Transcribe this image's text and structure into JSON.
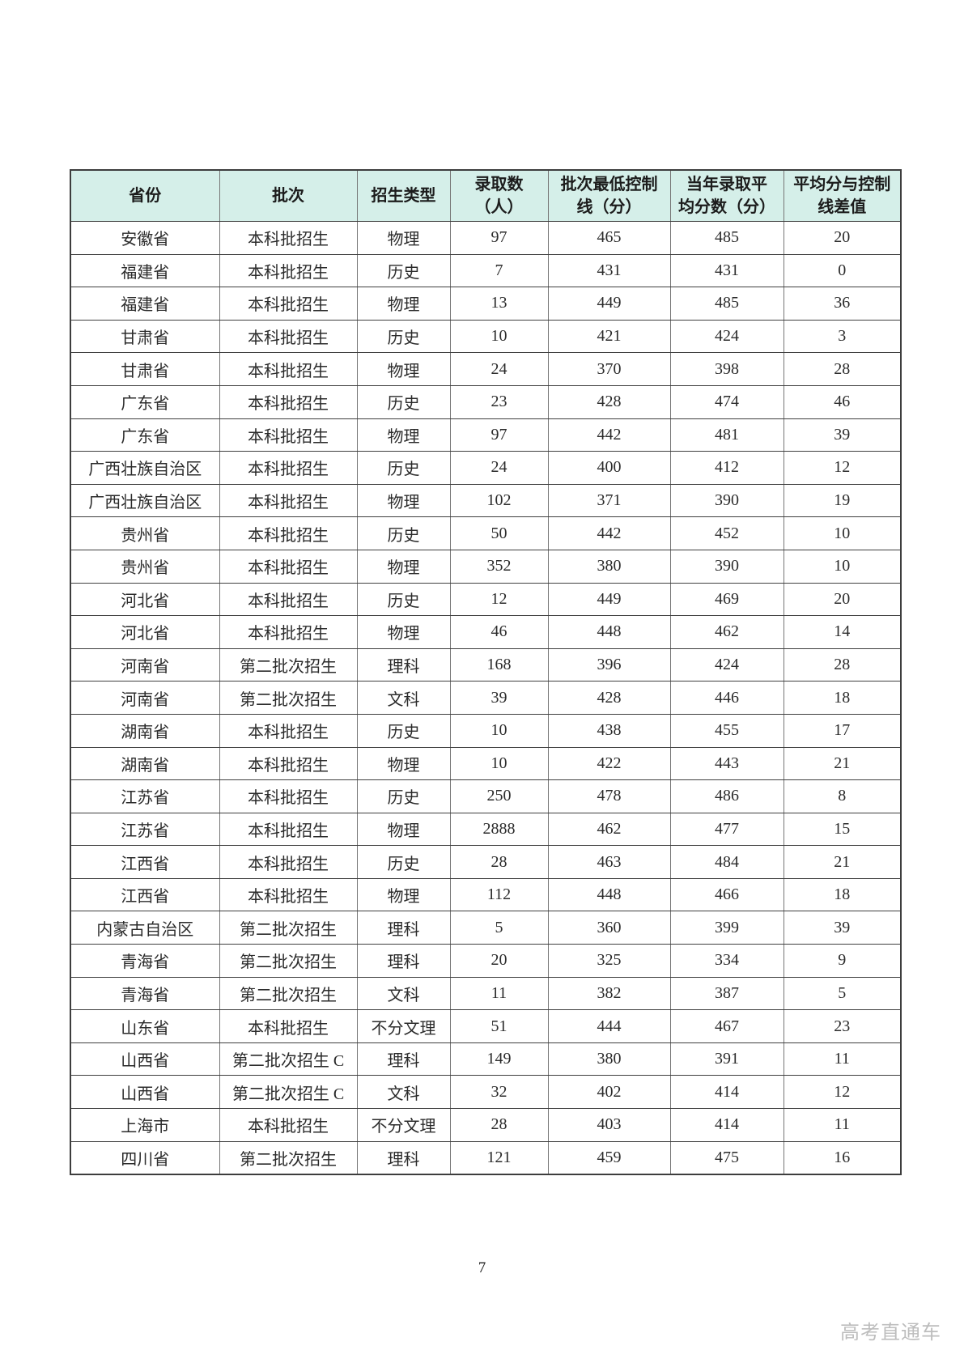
{
  "page": {
    "number": "7",
    "watermark": "高考直通车"
  },
  "colors": {
    "header_bg": "#d5efe9",
    "border_horizontal": "#3f3f3f",
    "border_vertical": "#767676",
    "watermark_text": "#bdbdbd"
  },
  "table": {
    "headers": [
      {
        "line1": "省份",
        "line2": ""
      },
      {
        "line1": "批次",
        "line2": ""
      },
      {
        "line1": "招生类型",
        "line2": ""
      },
      {
        "line1": "录取数",
        "line2": "（人）"
      },
      {
        "line1": "批次最低控制",
        "line2": "线（分）"
      },
      {
        "line1": "当年录取平",
        "line2": "均分数（分）"
      },
      {
        "line1": "平均分与控制",
        "line2": "线差值"
      }
    ],
    "rows": [
      [
        "安徽省",
        "本科批招生",
        "物理",
        "97",
        "465",
        "485",
        "20"
      ],
      [
        "福建省",
        "本科批招生",
        "历史",
        "7",
        "431",
        "431",
        "0"
      ],
      [
        "福建省",
        "本科批招生",
        "物理",
        "13",
        "449",
        "485",
        "36"
      ],
      [
        "甘肃省",
        "本科批招生",
        "历史",
        "10",
        "421",
        "424",
        "3"
      ],
      [
        "甘肃省",
        "本科批招生",
        "物理",
        "24",
        "370",
        "398",
        "28"
      ],
      [
        "广东省",
        "本科批招生",
        "历史",
        "23",
        "428",
        "474",
        "46"
      ],
      [
        "广东省",
        "本科批招生",
        "物理",
        "97",
        "442",
        "481",
        "39"
      ],
      [
        "广西壮族自治区",
        "本科批招生",
        "历史",
        "24",
        "400",
        "412",
        "12"
      ],
      [
        "广西壮族自治区",
        "本科批招生",
        "物理",
        "102",
        "371",
        "390",
        "19"
      ],
      [
        "贵州省",
        "本科批招生",
        "历史",
        "50",
        "442",
        "452",
        "10"
      ],
      [
        "贵州省",
        "本科批招生",
        "物理",
        "352",
        "380",
        "390",
        "10"
      ],
      [
        "河北省",
        "本科批招生",
        "历史",
        "12",
        "449",
        "469",
        "20"
      ],
      [
        "河北省",
        "本科批招生",
        "物理",
        "46",
        "448",
        "462",
        "14"
      ],
      [
        "河南省",
        "第二批次招生",
        "理科",
        "168",
        "396",
        "424",
        "28"
      ],
      [
        "河南省",
        "第二批次招生",
        "文科",
        "39",
        "428",
        "446",
        "18"
      ],
      [
        "湖南省",
        "本科批招生",
        "历史",
        "10",
        "438",
        "455",
        "17"
      ],
      [
        "湖南省",
        "本科批招生",
        "物理",
        "10",
        "422",
        "443",
        "21"
      ],
      [
        "江苏省",
        "本科批招生",
        "历史",
        "250",
        "478",
        "486",
        "8"
      ],
      [
        "江苏省",
        "本科批招生",
        "物理",
        "2888",
        "462",
        "477",
        "15"
      ],
      [
        "江西省",
        "本科批招生",
        "历史",
        "28",
        "463",
        "484",
        "21"
      ],
      [
        "江西省",
        "本科批招生",
        "物理",
        "112",
        "448",
        "466",
        "18"
      ],
      [
        "内蒙古自治区",
        "第二批次招生",
        "理科",
        "5",
        "360",
        "399",
        "39"
      ],
      [
        "青海省",
        "第二批次招生",
        "理科",
        "20",
        "325",
        "334",
        "9"
      ],
      [
        "青海省",
        "第二批次招生",
        "文科",
        "11",
        "382",
        "387",
        "5"
      ],
      [
        "山东省",
        "本科批招生",
        "不分文理",
        "51",
        "444",
        "467",
        "23"
      ],
      [
        "山西省",
        "第二批次招生 C",
        "理科",
        "149",
        "380",
        "391",
        "11"
      ],
      [
        "山西省",
        "第二批次招生 C",
        "文科",
        "32",
        "402",
        "414",
        "12"
      ],
      [
        "上海市",
        "本科批招生",
        "不分文理",
        "28",
        "403",
        "414",
        "11"
      ],
      [
        "四川省",
        "第二批次招生",
        "理科",
        "121",
        "459",
        "475",
        "16"
      ]
    ]
  }
}
